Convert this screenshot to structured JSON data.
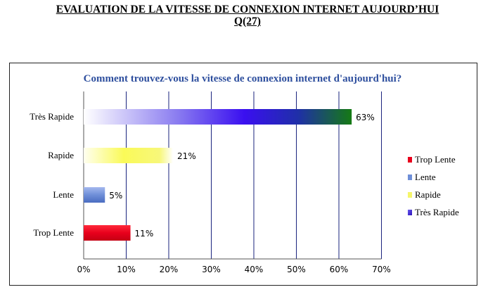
{
  "page": {
    "title_line1": "EVALUATION DE LA VITESSE DE CONNEXION INTERNET AUJOURD’HUI",
    "title_line2": "Q(27)"
  },
  "chart_data": {
    "type": "bar",
    "orientation": "horizontal",
    "title": "Comment trouvez-vous la vitesse de connexion internet d'aujourd'hui?",
    "categories": [
      "Très Rapide",
      "Rapide",
      "Lente",
      "Trop Lente"
    ],
    "values": [
      63,
      21,
      5,
      11
    ],
    "value_labels": [
      "63%",
      "21%",
      "5%",
      "11%"
    ],
    "xlim": [
      0,
      70
    ],
    "xticks": [
      0,
      10,
      20,
      30,
      40,
      50,
      60,
      70
    ],
    "xtick_labels": [
      "0%",
      "10%",
      "20%",
      "30%",
      "40%",
      "50%",
      "60%",
      "70%"
    ],
    "grid": "vertical",
    "legend_position": "right",
    "legend": [
      {
        "label": "Trop Lente",
        "color": "#e8001c"
      },
      {
        "label": "Lente",
        "color": "#6f8fd8"
      },
      {
        "label": "Rapide",
        "color": "#f5f56a"
      },
      {
        "label": "Très Rapide",
        "color": "#3a12d0"
      }
    ],
    "colors": {
      "title": "#2e4f9e",
      "grid": "#1a237e",
      "axis": "#555555"
    }
  }
}
